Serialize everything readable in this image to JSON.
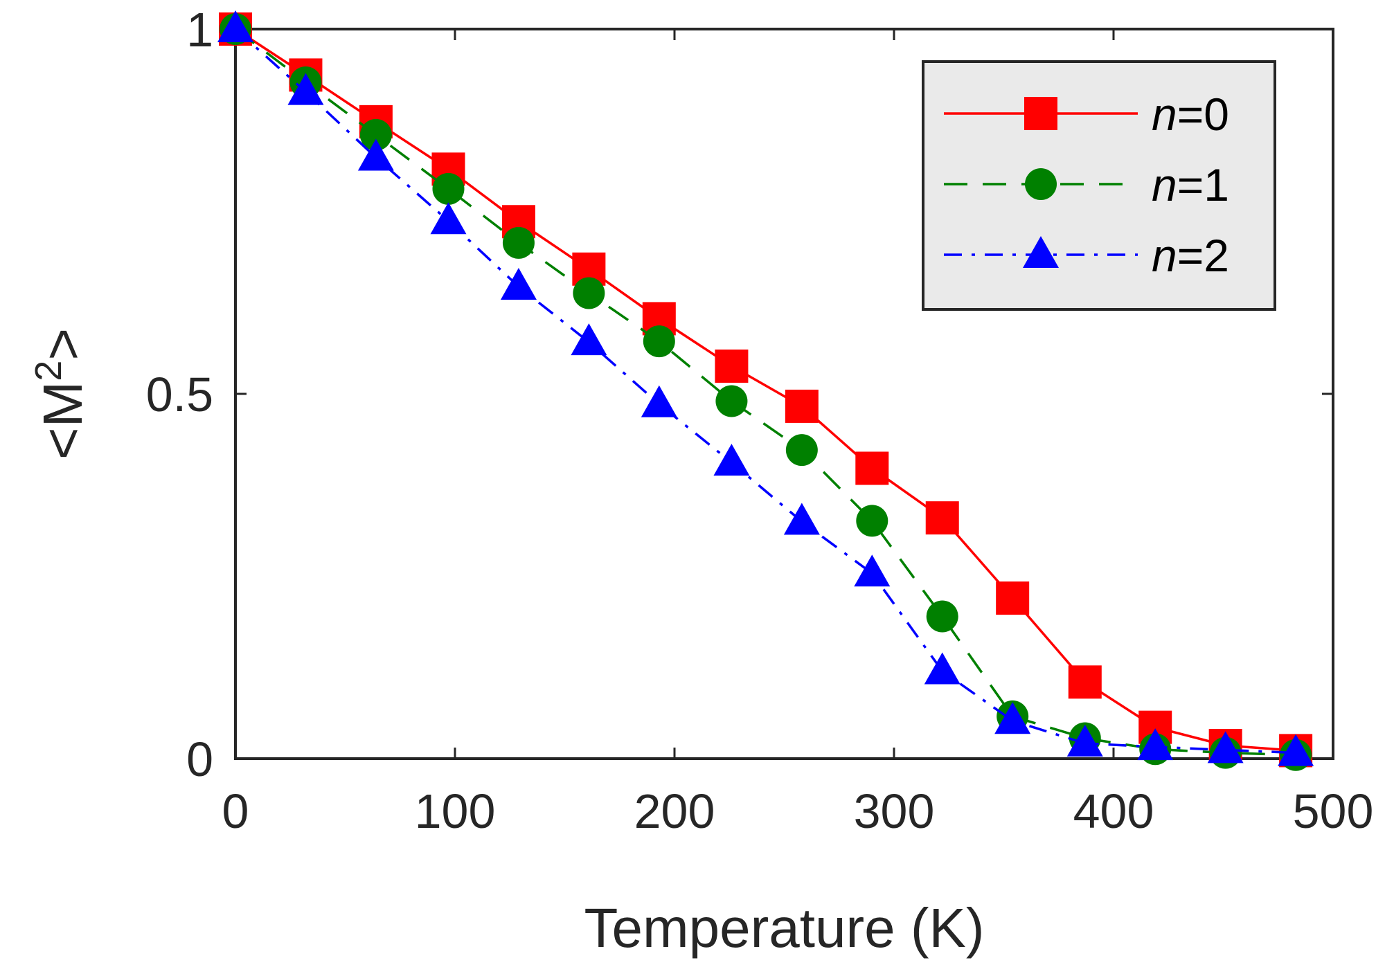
{
  "chart_data": {
    "type": "line",
    "xlabel": "Temperature (K)",
    "ylabel": "<M",
    "ylabel_sup": "2",
    "ylabel_end": ">",
    "xlim": [
      0,
      500
    ],
    "ylim": [
      0,
      1
    ],
    "xticks": [
      0,
      100,
      200,
      300,
      400,
      500
    ],
    "yticks": [
      0,
      0.5,
      1
    ],
    "xtick_labels": [
      "0",
      "100",
      "200",
      "300",
      "400",
      "500"
    ],
    "ytick_labels": [
      "0",
      "0.5",
      "1"
    ],
    "grid": false,
    "legend_position": "top-right",
    "x": [
      0,
      32,
      64,
      97,
      129,
      161,
      193,
      226,
      258,
      290,
      322,
      354,
      387,
      419,
      451,
      483
    ],
    "series": [
      {
        "name": "n=0",
        "name_italic": "n",
        "name_rest": "=0",
        "color": "#ff0000",
        "marker": "square",
        "line": "solid",
        "values": [
          1.0,
          0.937,
          0.873,
          0.808,
          0.736,
          0.671,
          0.603,
          0.538,
          0.483,
          0.398,
          0.33,
          0.22,
          0.105,
          0.043,
          0.018,
          0.011
        ]
      },
      {
        "name": "n=1",
        "name_italic": "n",
        "name_rest": "=1",
        "color": "#008000",
        "marker": "circle",
        "line": "dashed",
        "values": [
          1.0,
          0.927,
          0.855,
          0.781,
          0.707,
          0.638,
          0.572,
          0.49,
          0.423,
          0.326,
          0.195,
          0.058,
          0.028,
          0.013,
          0.008,
          0.005
        ]
      },
      {
        "name": "n=2",
        "name_italic": "n",
        "name_rest": "=2",
        "color": "#0000ff",
        "marker": "triangle",
        "line": "dashdot",
        "values": [
          1.0,
          0.914,
          0.824,
          0.737,
          0.647,
          0.571,
          0.486,
          0.406,
          0.325,
          0.254,
          0.12,
          0.052,
          0.021,
          0.016,
          0.012,
          0.008
        ]
      }
    ]
  }
}
